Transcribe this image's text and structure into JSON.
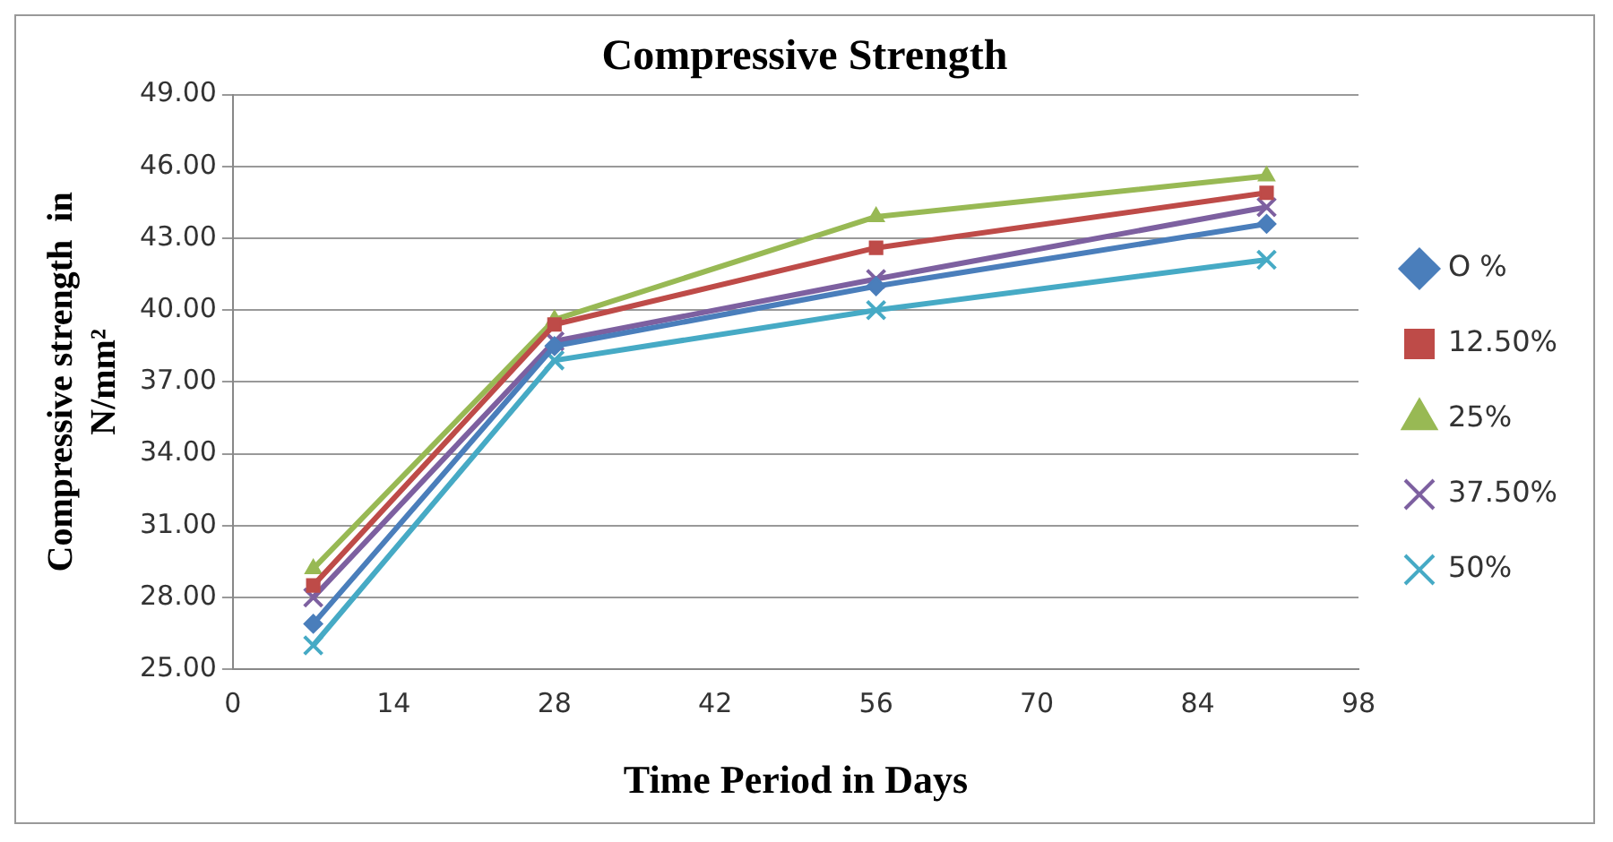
{
  "chart_data": {
    "type": "line",
    "title": "Compressive Strength",
    "xlabel": "Time Period in Days",
    "ylabel": "Compressive strength  in N/mm²",
    "x": [
      7,
      28,
      56,
      90
    ],
    "series": [
      {
        "name": "O %",
        "color": "#4a7ebb",
        "marker": "diamond",
        "values": [
          26.9,
          38.5,
          41.0,
          43.6
        ]
      },
      {
        "name": "12.50%",
        "color": "#be4b48",
        "marker": "square",
        "values": [
          28.5,
          39.4,
          42.6,
          44.9
        ]
      },
      {
        "name": "25%",
        "color": "#98b954",
        "marker": "triangle",
        "values": [
          29.2,
          39.6,
          43.9,
          45.6
        ]
      },
      {
        "name": "37.50%",
        "color": "#7d60a0",
        "marker": "cross",
        "values": [
          28.0,
          38.7,
          41.3,
          44.3
        ]
      },
      {
        "name": "50%",
        "color": "#46aac5",
        "marker": "cross",
        "values": [
          26.0,
          37.9,
          40.0,
          42.1
        ]
      }
    ],
    "xlim": [
      0,
      98
    ],
    "xticks": [
      0,
      14,
      28,
      42,
      56,
      70,
      84,
      98
    ],
    "ylim": [
      25,
      49
    ],
    "yticks": [
      {
        "value": 25,
        "label": "25.00"
      },
      {
        "value": 28,
        "label": "28.00"
      },
      {
        "value": 31,
        "label": "31.00"
      },
      {
        "value": 34,
        "label": "34.00"
      },
      {
        "value": 37,
        "label": "37.00"
      },
      {
        "value": 40,
        "label": "40.00"
      },
      {
        "value": 43,
        "label": "43.00"
      },
      {
        "value": 46,
        "label": "46.00"
      },
      {
        "value": 49,
        "label": "49.00"
      }
    ],
    "grid": "y",
    "legend": "right",
    "line_style": "solid"
  }
}
